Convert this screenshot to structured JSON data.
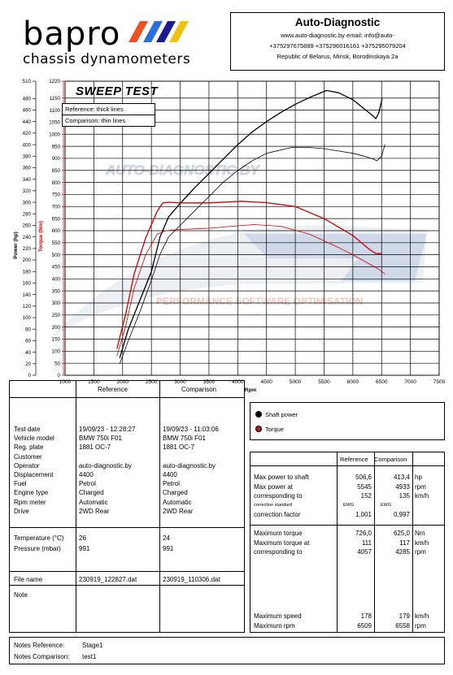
{
  "header": {
    "brand": "bapro",
    "subtitle": "chassis dynamometers",
    "contact_title": "Auto-Diagnostic",
    "contact_lines": [
      "www.auto-diagnostic.by     email: info@auto-",
      "+375297675889  +375296016161  +375295079204",
      "Republic of Belarus, Minsk, Borodinskaya 2a"
    ]
  },
  "chart_data": {
    "type": "line",
    "title": "SWEEP TEST",
    "legend_box": [
      "Reference: thick lines",
      "Comparison: thin lines"
    ],
    "watermarks": [
      "AUTO-DIAGNOSTIC.BY",
      "PERFORMANCE SOFTWARE OPTIMISATION"
    ],
    "xlabel": "Rpm",
    "ylabel_power": "Power (hp)",
    "ylabel_torque": "Torque (Nm)",
    "xlim": [
      1000,
      7500
    ],
    "ylim_power": [
      0,
      510
    ],
    "ylim_torque": [
      0,
      1220
    ],
    "x_ticks": [
      1000,
      1500,
      2000,
      2500,
      3000,
      3500,
      4000,
      4500,
      5000,
      5500,
      6000,
      6500,
      7000,
      7500
    ],
    "power_ticks": [
      0,
      20,
      40,
      60,
      80,
      100,
      120,
      140,
      160,
      180,
      200,
      220,
      240,
      260,
      280,
      300,
      320,
      340,
      360,
      380,
      400,
      420,
      440,
      460,
      480,
      510
    ],
    "torque_ticks": [
      0,
      50,
      100,
      150,
      200,
      250,
      300,
      350,
      400,
      450,
      500,
      550,
      600,
      650,
      700,
      750,
      800,
      850,
      900,
      950,
      1000,
      1050,
      1100,
      1150,
      1220
    ],
    "grid": true,
    "series": [
      {
        "name": "Power",
        "role": "reference",
        "axis": "power",
        "color": "#000000",
        "x": [
          1950,
          2100,
          2300,
          2500,
          2650,
          2800,
          3000,
          3250,
          3500,
          3750,
          4000,
          4250,
          4500,
          4750,
          5000,
          5250,
          5545,
          5750,
          6000,
          6200,
          6350,
          6400,
          6450,
          6509
        ],
        "y": [
          30,
          80,
          130,
          180,
          240,
          275,
          298,
          325,
          350,
          375,
          400,
          422,
          440,
          456,
          470,
          482,
          494,
          490,
          478,
          462,
          450,
          445,
          455,
          480
        ]
      },
      {
        "name": "Power",
        "role": "comparison",
        "axis": "power",
        "color": "#000000",
        "x": [
          1950,
          2100,
          2300,
          2500,
          2650,
          2800,
          3000,
          3250,
          3500,
          3750,
          4000,
          4250,
          4500,
          4933,
          5250,
          5500,
          5750,
          6000,
          6200,
          6350,
          6420,
          6500,
          6558
        ],
        "y": [
          20,
          60,
          110,
          165,
          210,
          240,
          260,
          285,
          310,
          335,
          355,
          372,
          385,
          395,
          395,
          393,
          389,
          385,
          380,
          375,
          372,
          380,
          400
        ]
      },
      {
        "name": "Torque",
        "role": "reference",
        "axis": "torque",
        "color": "#cc0000",
        "x": [
          1900,
          2050,
          2200,
          2400,
          2600,
          2700,
          2800,
          3000,
          3500,
          4057,
          4500,
          5000,
          5500,
          6000,
          6300,
          6400,
          6509
        ],
        "y": [
          110,
          250,
          420,
          570,
          680,
          715,
          718,
          715,
          715,
          722,
          716,
          700,
          650,
          580,
          520,
          505,
          505
        ]
      },
      {
        "name": "Torque",
        "role": "comparison",
        "axis": "torque",
        "color": "#cc0000",
        "x": [
          1900,
          2050,
          2200,
          2400,
          2600,
          2750,
          3000,
          3500,
          4000,
          4285,
          4750,
          5250,
          5750,
          6000,
          6300,
          6450,
          6558
        ],
        "y": [
          80,
          200,
          360,
          500,
          585,
          600,
          605,
          610,
          620,
          625,
          618,
          585,
          530,
          500,
          460,
          440,
          420
        ]
      }
    ]
  },
  "legend": {
    "shaft_power": "Shaft power",
    "torque": "Torque",
    "shaft_color": "#000000",
    "torque_color": "#cc1111"
  },
  "vehicle": {
    "col_reference": "Reference",
    "col_comparison": "Comparison",
    "labels": [
      "Test date",
      "Vehicle model",
      "Reg. plate",
      "Customer",
      "Operator",
      "Displacement",
      "Fuel",
      "Engine type",
      "Rpm meter",
      "Drive"
    ],
    "reference": [
      "19/09/23 - 12:28:27",
      "BMW 750i F01",
      "1881 OC-7",
      "",
      "auto-diagnostic.by",
      "4400",
      "Petrol",
      "Charged",
      "Automatic",
      "2WD Rear"
    ],
    "comparison": [
      "19/09/23 - 11:03:06",
      "BMW 750i F01",
      "1881 OC-7",
      "",
      "auto-diagnostic.by",
      "4400",
      "Petrol",
      "Charged",
      "Automatic",
      "2WD Rear"
    ],
    "cond_labels": [
      "Temperature (°C)",
      "Pressure (mbar)"
    ],
    "cond_reference": [
      "26",
      "991"
    ],
    "cond_comparison": [
      "24",
      "991"
    ],
    "file_label": "File name",
    "file_reference": "230919_122827.dat",
    "file_comparison": "230919_110306.dat",
    "note_label": "Note"
  },
  "results": {
    "col_reference": "Reference",
    "col_comparison": "Comparison",
    "power_labels": [
      "Max power to shaft",
      "Max power at",
      "corresponding to",
      "correction standard",
      "correction factor"
    ],
    "power_reference": [
      "506,6",
      "5545",
      "152",
      "EWG",
      "1,001"
    ],
    "power_comparison": [
      "413,4",
      "4933",
      "135",
      "EWG",
      "0,997"
    ],
    "power_units": [
      "hp",
      "rpm",
      "km/h",
      "",
      ""
    ],
    "torque_labels": [
      "Maximum torque",
      "Maximum torque at",
      "corresponding to"
    ],
    "torque_reference": [
      "726,0",
      "111",
      "4057"
    ],
    "torque_comparison": [
      "625,0",
      "117",
      "4285"
    ],
    "torque_units": [
      "Nm",
      "km/h",
      "rpm"
    ],
    "speed_labels": [
      "Maximum speed",
      "Maximum rpm"
    ],
    "speed_reference": [
      "178",
      "6509"
    ],
    "speed_comparison": [
      "179",
      "6558"
    ],
    "speed_units": [
      "km/h",
      "rpm"
    ]
  },
  "notes": {
    "ref_label": "Notes Reference:",
    "ref_value": "Stage1",
    "comp_label": "Notes Comparison:",
    "comp_value": "test1"
  }
}
